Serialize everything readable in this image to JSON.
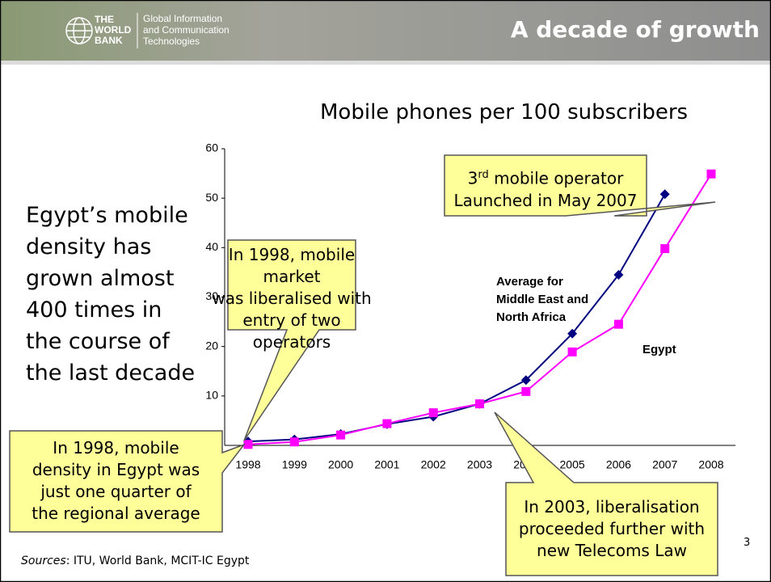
{
  "header": {
    "logo": [
      "THE",
      "WORLD",
      "BANK"
    ],
    "unit": [
      "Global Information",
      "and Communication",
      "Technologies"
    ],
    "title": "A decade of growth"
  },
  "lead": [
    "Egypt’s mobile",
    "density has",
    "grown almost",
    "400 times in",
    "the course of",
    "the last decade"
  ],
  "callouts": [
    {
      "lines": [
        "In 1998, mobile market",
        "was liberalised with",
        "entry of two operators"
      ]
    },
    {
      "lines": [
        "In 1998, mobile",
        "density in Egypt was",
        "just one quarter of",
        "the regional average"
      ]
    },
    {
      "lines": [
        "In 2003, liberalisation",
        "proceeded further with",
        "new Telecoms Law"
      ]
    }
  ],
  "operator_callout": {
    "number": "3",
    "suffix": "rd",
    "rest": " mobile operator",
    "line2": "Launched in May 2007"
  },
  "sources": {
    "label": "Sources",
    "text": ": ITU, World Bank, MCIT-IC Egypt"
  },
  "page_number": "3",
  "chart_data": {
    "type": "line",
    "title": "Mobile phones per 100 subscribers",
    "categories": [
      "1998",
      "1999",
      "2000",
      "2001",
      "2002",
      "2003",
      "2004",
      "2005",
      "2006",
      "2007",
      "2008"
    ],
    "series": [
      {
        "name": "Average for Middle East and North Africa",
        "color": "#000080",
        "marker": "diamond",
        "values": [
          0.8,
          1.2,
          2.3,
          4.3,
          5.8,
          8.4,
          13.2,
          22.6,
          34.5,
          50.8,
          null
        ]
      },
      {
        "name": "Egypt",
        "color": "#ff00ff",
        "marker": "square",
        "values": [
          0.2,
          0.7,
          2.1,
          4.4,
          6.6,
          8.4,
          10.9,
          18.9,
          24.5,
          39.8,
          54.9
        ]
      }
    ],
    "ylim": [
      0,
      60
    ],
    "yticks": [
      10,
      20,
      30,
      40,
      50,
      60
    ]
  }
}
